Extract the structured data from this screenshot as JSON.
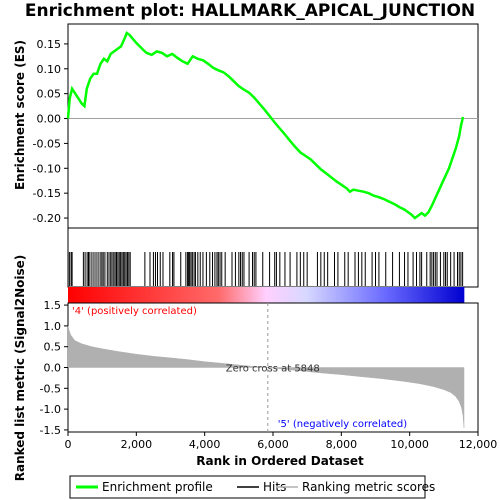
{
  "chart_data": {
    "type": "line",
    "title": "Enrichment plot: HALLMARK_APICAL_JUNCTION",
    "xlabel": "Rank in Ordered Dataset",
    "x_ticks": [
      "0",
      "2,000",
      "4,000",
      "6,000",
      "8,000",
      "10,000",
      "12,000"
    ],
    "xlim": [
      0,
      12000
    ],
    "es_panel": {
      "ylabel": "Enrichment score (ES)",
      "ylim": [
        -0.22,
        0.19
      ],
      "y_ticks": [
        "0.15",
        "0.10",
        "0.05",
        "0.00",
        "-0.05",
        "-0.10",
        "-0.15",
        "-0.20"
      ],
      "series": [
        {
          "name": "Enrichment profile",
          "color": "#00ff00",
          "points": [
            [
              0,
              0.0
            ],
            [
              50,
              0.04
            ],
            [
              120,
              0.06
            ],
            [
              400,
              0.03
            ],
            [
              480,
              0.025
            ],
            [
              550,
              0.06
            ],
            [
              650,
              0.08
            ],
            [
              750,
              0.09
            ],
            [
              850,
              0.09
            ],
            [
              950,
              0.11
            ],
            [
              1050,
              0.12
            ],
            [
              1150,
              0.115
            ],
            [
              1250,
              0.13
            ],
            [
              1350,
              0.135
            ],
            [
              1450,
              0.14
            ],
            [
              1550,
              0.145
            ],
            [
              1650,
              0.16
            ],
            [
              1720,
              0.172
            ],
            [
              1800,
              0.168
            ],
            [
              1900,
              0.16
            ],
            [
              2000,
              0.152
            ],
            [
              2100,
              0.145
            ],
            [
              2200,
              0.138
            ],
            [
              2300,
              0.132
            ],
            [
              2450,
              0.128
            ],
            [
              2600,
              0.135
            ],
            [
              2750,
              0.132
            ],
            [
              2900,
              0.125
            ],
            [
              3050,
              0.13
            ],
            [
              3200,
              0.122
            ],
            [
              3350,
              0.115
            ],
            [
              3500,
              0.11
            ],
            [
              3650,
              0.125
            ],
            [
              3800,
              0.12
            ],
            [
              3950,
              0.117
            ],
            [
              4100,
              0.11
            ],
            [
              4250,
              0.102
            ],
            [
              4400,
              0.097
            ],
            [
              4550,
              0.093
            ],
            [
              4700,
              0.085
            ],
            [
              4850,
              0.075
            ],
            [
              5000,
              0.065
            ],
            [
              5150,
              0.058
            ],
            [
              5300,
              0.052
            ],
            [
              5450,
              0.042
            ],
            [
              5600,
              0.03
            ],
            [
              5750,
              0.018
            ],
            [
              5900,
              0.005
            ],
            [
              6050,
              -0.008
            ],
            [
              6200,
              -0.02
            ],
            [
              6350,
              -0.032
            ],
            [
              6500,
              -0.045
            ],
            [
              6650,
              -0.057
            ],
            [
              6800,
              -0.068
            ],
            [
              6950,
              -0.075
            ],
            [
              7100,
              -0.082
            ],
            [
              7250,
              -0.092
            ],
            [
              7400,
              -0.102
            ],
            [
              7550,
              -0.11
            ],
            [
              7700,
              -0.118
            ],
            [
              7850,
              -0.126
            ],
            [
              8000,
              -0.133
            ],
            [
              8150,
              -0.14
            ],
            [
              8250,
              -0.147
            ],
            [
              8350,
              -0.143
            ],
            [
              8500,
              -0.145
            ],
            [
              8650,
              -0.147
            ],
            [
              8800,
              -0.15
            ],
            [
              8950,
              -0.155
            ],
            [
              9100,
              -0.158
            ],
            [
              9250,
              -0.162
            ],
            [
              9400,
              -0.167
            ],
            [
              9550,
              -0.172
            ],
            [
              9700,
              -0.178
            ],
            [
              9850,
              -0.183
            ],
            [
              9950,
              -0.188
            ],
            [
              10050,
              -0.193
            ],
            [
              10150,
              -0.2
            ],
            [
              10250,
              -0.195
            ],
            [
              10350,
              -0.19
            ],
            [
              10450,
              -0.195
            ],
            [
              10550,
              -0.188
            ],
            [
              10650,
              -0.175
            ],
            [
              10750,
              -0.16
            ],
            [
              10850,
              -0.145
            ],
            [
              10950,
              -0.13
            ],
            [
              11050,
              -0.115
            ],
            [
              11150,
              -0.1
            ],
            [
              11250,
              -0.08
            ],
            [
              11350,
              -0.06
            ],
            [
              11450,
              -0.035
            ],
            [
              11500,
              -0.015
            ],
            [
              11560,
              0.003
            ]
          ]
        }
      ],
      "hit_label": "Hits",
      "hits": [
        40,
        90,
        120,
        450,
        500,
        560,
        600,
        640,
        700,
        760,
        820,
        880,
        940,
        990,
        1030,
        1080,
        1150,
        1200,
        1250,
        1290,
        1340,
        1380,
        1420,
        1460,
        1500,
        1540,
        1580,
        1620,
        1660,
        1700,
        1740,
        1780,
        1820,
        2250,
        2400,
        2500,
        2560,
        2620,
        2700,
        2780,
        2980,
        3060,
        3100,
        3300,
        3450,
        3500,
        3530,
        3560,
        3600,
        3640,
        3690,
        3730,
        3800,
        3870,
        3950,
        4050,
        4150,
        4230,
        4300,
        4360,
        4400,
        4450,
        4500,
        4600,
        4800,
        4900,
        5000,
        5050,
        5100,
        5150,
        5300,
        5400,
        5450,
        5500,
        5700,
        5900,
        6050,
        6100,
        6200,
        6350,
        6500,
        6700,
        6800,
        6900,
        7000,
        7300,
        7400,
        7500,
        7600,
        7800,
        7900,
        8100,
        8200,
        8400,
        8500,
        8600,
        8700,
        8900,
        9000,
        9100,
        9300,
        9500,
        9700,
        9850,
        9950,
        10100,
        10200,
        10300,
        10350,
        10500,
        10600,
        10650,
        10700,
        10750,
        10800,
        10900,
        11000,
        11050,
        11100,
        11200,
        11300,
        11400,
        11450,
        11500,
        11550
      ]
    },
    "metric_panel": {
      "ylabel": "Ranked list metric (Signal2Noise)",
      "ylim": [
        -1.55,
        1.55
      ],
      "y_ticks": [
        "1.5",
        "1.0",
        "0.5",
        "0.0",
        "-0.5",
        "-1.0",
        "-1.5"
      ],
      "n_genes": 11600,
      "series": [
        {
          "name": "Ranking metric scores",
          "color": "#b0b0b0",
          "points": [
            [
              0,
              1.0
            ],
            [
              30,
              0.9
            ],
            [
              80,
              0.78
            ],
            [
              200,
              0.65
            ],
            [
              400,
              0.57
            ],
            [
              700,
              0.5
            ],
            [
              1000,
              0.45
            ],
            [
              1500,
              0.38
            ],
            [
              2000,
              0.32
            ],
            [
              2500,
              0.27
            ],
            [
              3000,
              0.23
            ],
            [
              3500,
              0.19
            ],
            [
              4000,
              0.14
            ],
            [
              4500,
              0.1
            ],
            [
              5000,
              0.06
            ],
            [
              5500,
              0.02
            ],
            [
              5848,
              0.0
            ],
            [
              6200,
              -0.03
            ],
            [
              6800,
              -0.08
            ],
            [
              7400,
              -0.13
            ],
            [
              8000,
              -0.17
            ],
            [
              8600,
              -0.22
            ],
            [
              9200,
              -0.27
            ],
            [
              9800,
              -0.33
            ],
            [
              10300,
              -0.39
            ],
            [
              10700,
              -0.46
            ],
            [
              11000,
              -0.53
            ],
            [
              11200,
              -0.6
            ],
            [
              11350,
              -0.7
            ],
            [
              11450,
              -0.82
            ],
            [
              11520,
              -0.97
            ],
            [
              11560,
              -1.15
            ],
            [
              11590,
              -1.45
            ]
          ]
        }
      ],
      "zero_cross_label": "Zero cross at 5848",
      "zero_cross": 5848,
      "pos_label": "'4' (positively correlated)",
      "neg_label": "'5' (negatively correlated)",
      "pos_color": "#ff0000",
      "neg_color": "#0000ff"
    },
    "legend": {
      "placement": "bottom",
      "items": [
        {
          "label": "Enrichment profile",
          "color": "#00ff00",
          "style": "line-thick"
        },
        {
          "label": "Hits",
          "color": "#000000",
          "style": "line"
        },
        {
          "label": "Ranking metric scores",
          "color": "#b0b0b0",
          "style": "line"
        }
      ]
    }
  }
}
